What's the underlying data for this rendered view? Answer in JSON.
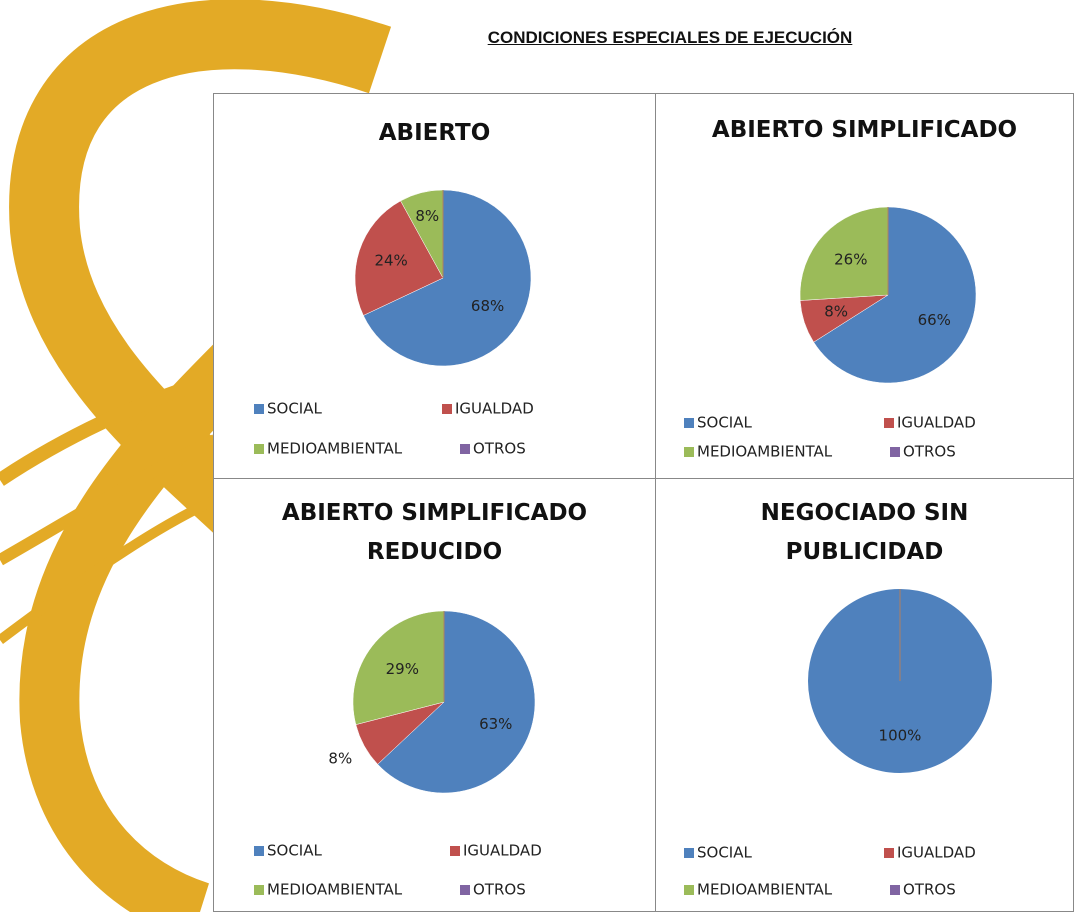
{
  "title": "CONDICIONES ESPECIALES DE EJECUCIÓN",
  "chart_data": [
    {
      "type": "pie",
      "title": "ABIERTO",
      "categories": [
        "SOCIAL",
        "IGUALDAD",
        "MEDIOAMBIENTAL",
        "OTROS"
      ],
      "values": [
        68,
        24,
        8,
        0
      ],
      "value_labels": [
        "68%",
        "24%",
        "8%",
        null
      ],
      "colors": [
        "#4f81bd",
        "#c0504d",
        "#9bbb59",
        "#8064a2"
      ]
    },
    {
      "type": "pie",
      "title": "ABIERTO SIMPLIFICADO",
      "categories": [
        "SOCIAL",
        "IGUALDAD",
        "MEDIOAMBIENTAL",
        "OTROS"
      ],
      "values": [
        66,
        8,
        26,
        0
      ],
      "value_labels": [
        "66%",
        "8%",
        "26%",
        null
      ],
      "colors": [
        "#4f81bd",
        "#c0504d",
        "#9bbb59",
        "#8064a2"
      ]
    },
    {
      "type": "pie",
      "title": "ABIERTO SIMPLIFICADO REDUCIDO",
      "categories": [
        "SOCIAL",
        "IGUALDAD",
        "MEDIOAMBIENTAL",
        "OTROS"
      ],
      "values": [
        63,
        8,
        29,
        0
      ],
      "value_labels": [
        "63%",
        "8%",
        "29%",
        null
      ],
      "colors": [
        "#4f81bd",
        "#c0504d",
        "#9bbb59",
        "#8064a2"
      ]
    },
    {
      "type": "pie",
      "title": "NEGOCIADO SIN PUBLICIDAD",
      "categories": [
        "SOCIAL",
        "IGUALDAD",
        "MEDIOAMBIENTAL",
        "OTROS"
      ],
      "values": [
        100,
        0,
        0,
        0
      ],
      "value_labels": [
        "100%",
        null,
        null,
        null
      ],
      "colors": [
        "#4f81bd",
        "#c0504d",
        "#9bbb59",
        "#8064a2"
      ]
    }
  ]
}
